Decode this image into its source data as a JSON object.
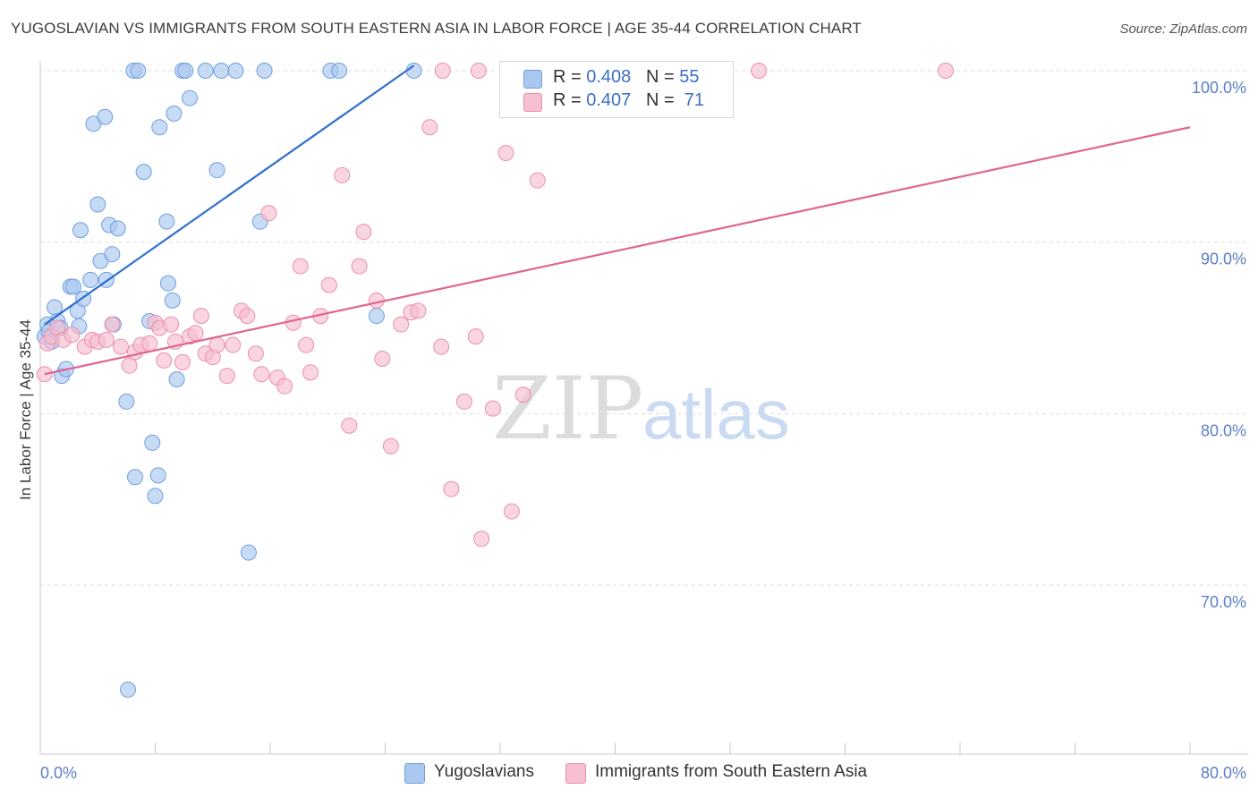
{
  "header": {
    "title": "YUGOSLAVIAN VS IMMIGRANTS FROM SOUTH EASTERN ASIA IN LABOR FORCE | AGE 35-44 CORRELATION CHART",
    "source": "Source: ZipAtlas.com"
  },
  "watermark": {
    "zip": "ZIP",
    "atlas": "atlas"
  },
  "legend": {
    "r_label": "R =",
    "n_label": "N =",
    "rows": [
      {
        "r_value": "0.408",
        "n_value": "55"
      },
      {
        "r_value": "0.407",
        "n_value": "71"
      }
    ]
  },
  "colors": {
    "blue_fill": "#aac8ef",
    "blue_stroke": "#6e9fe0",
    "blue_line": "#2f6fcf",
    "pink_fill": "#f6bfd0",
    "pink_stroke": "#ec8fae",
    "pink_line": "#e06592",
    "grid": "#dcdcdc",
    "tick_text": "#5b7fc4"
  },
  "chart_data": {
    "type": "scatter",
    "title": "YUGOSLAVIAN VS IMMIGRANTS FROM SOUTH EASTERN ASIA IN LABOR FORCE | AGE 35-44 CORRELATION CHART",
    "xlabel": "",
    "ylabel": "In Labor Force | Age 35-44",
    "xlim": [
      0,
      80
    ],
    "ylim": [
      61,
      101
    ],
    "x_tick_labels": [
      "0.0%",
      "80.0%"
    ],
    "y_ticks": [
      70,
      80,
      90,
      100
    ],
    "y_tick_labels": [
      "70.0%",
      "80.0%",
      "90.0%",
      "100.0%"
    ],
    "grid": true,
    "series": [
      {
        "name": "Yugoslavians",
        "r": 0.408,
        "n": 55,
        "trend": {
          "x": [
            0.3,
            26.0
          ],
          "y": [
            85.2,
            100.3
          ]
        },
        "points": [
          [
            0.3,
            84.5
          ],
          [
            0.5,
            85.2
          ],
          [
            0.6,
            84.8
          ],
          [
            0.8,
            84.2
          ],
          [
            1.0,
            86.2
          ],
          [
            1.2,
            85.4
          ],
          [
            1.4,
            85.0
          ],
          [
            1.5,
            82.2
          ],
          [
            1.8,
            82.6
          ],
          [
            2.1,
            87.4
          ],
          [
            2.3,
            87.4
          ],
          [
            2.6,
            86.0
          ],
          [
            2.7,
            85.1
          ],
          [
            2.8,
            90.7
          ],
          [
            3.0,
            86.7
          ],
          [
            3.5,
            87.8
          ],
          [
            3.7,
            96.9
          ],
          [
            4.0,
            92.2
          ],
          [
            4.2,
            88.9
          ],
          [
            4.5,
            97.3
          ],
          [
            4.6,
            87.8
          ],
          [
            4.8,
            91.0
          ],
          [
            5.0,
            89.3
          ],
          [
            5.1,
            85.2
          ],
          [
            5.4,
            90.8
          ],
          [
            6.0,
            80.7
          ],
          [
            6.5,
            100.0
          ],
          [
            6.6,
            76.3
          ],
          [
            6.8,
            100.0
          ],
          [
            7.2,
            94.1
          ],
          [
            7.6,
            85.4
          ],
          [
            7.8,
            78.3
          ],
          [
            8.0,
            75.2
          ],
          [
            8.2,
            76.4
          ],
          [
            8.3,
            96.7
          ],
          [
            8.8,
            91.2
          ],
          [
            8.9,
            87.6
          ],
          [
            9.2,
            86.6
          ],
          [
            9.3,
            97.5
          ],
          [
            9.5,
            82.0
          ],
          [
            9.9,
            100.0
          ],
          [
            10.1,
            100.0
          ],
          [
            10.4,
            98.4
          ],
          [
            11.5,
            100.0
          ],
          [
            12.3,
            94.2
          ],
          [
            12.6,
            100.0
          ],
          [
            13.6,
            100.0
          ],
          [
            14.5,
            71.9
          ],
          [
            15.3,
            91.2
          ],
          [
            15.6,
            100.0
          ],
          [
            20.2,
            100.0
          ],
          [
            20.8,
            100.0
          ],
          [
            23.4,
            85.7
          ],
          [
            26.0,
            100.0
          ],
          [
            6.1,
            63.9
          ]
        ]
      },
      {
        "name": "Immigrants from South Eastern Asia",
        "r": 0.407,
        "n": 71,
        "trend": {
          "x": [
            0.3,
            80.0
          ],
          "y": [
            82.3,
            96.7
          ]
        },
        "points": [
          [
            0.3,
            82.3
          ],
          [
            0.5,
            84.1
          ],
          [
            0.8,
            84.5
          ],
          [
            1.2,
            85.0
          ],
          [
            1.6,
            84.3
          ],
          [
            2.2,
            84.6
          ],
          [
            3.1,
            83.9
          ],
          [
            3.6,
            84.3
          ],
          [
            4.0,
            84.2
          ],
          [
            4.6,
            84.3
          ],
          [
            5.0,
            85.2
          ],
          [
            5.6,
            83.9
          ],
          [
            6.2,
            82.8
          ],
          [
            6.6,
            83.6
          ],
          [
            7.0,
            84.0
          ],
          [
            7.6,
            84.1
          ],
          [
            8.0,
            85.3
          ],
          [
            8.3,
            85.0
          ],
          [
            8.6,
            83.1
          ],
          [
            9.1,
            85.2
          ],
          [
            9.4,
            84.2
          ],
          [
            9.9,
            83.0
          ],
          [
            10.4,
            84.5
          ],
          [
            10.8,
            84.7
          ],
          [
            11.2,
            85.7
          ],
          [
            11.5,
            83.5
          ],
          [
            12.0,
            83.3
          ],
          [
            12.3,
            84.0
          ],
          [
            13.0,
            82.2
          ],
          [
            13.4,
            84.0
          ],
          [
            14.0,
            86.0
          ],
          [
            14.4,
            85.7
          ],
          [
            15.0,
            83.5
          ],
          [
            15.4,
            82.3
          ],
          [
            15.9,
            91.7
          ],
          [
            16.5,
            82.1
          ],
          [
            17.0,
            81.6
          ],
          [
            17.6,
            85.3
          ],
          [
            18.1,
            88.6
          ],
          [
            18.5,
            84.0
          ],
          [
            18.8,
            82.4
          ],
          [
            19.5,
            85.7
          ],
          [
            20.1,
            87.5
          ],
          [
            21.0,
            93.9
          ],
          [
            21.5,
            79.3
          ],
          [
            22.2,
            88.6
          ],
          [
            22.5,
            90.6
          ],
          [
            23.4,
            86.6
          ],
          [
            23.8,
            83.2
          ],
          [
            24.4,
            78.1
          ],
          [
            25.1,
            85.2
          ],
          [
            25.8,
            85.9
          ],
          [
            26.3,
            86.0
          ],
          [
            27.1,
            96.7
          ],
          [
            27.9,
            83.9
          ],
          [
            28.6,
            75.6
          ],
          [
            29.5,
            80.7
          ],
          [
            30.3,
            84.5
          ],
          [
            30.7,
            72.7
          ],
          [
            31.5,
            80.3
          ],
          [
            32.4,
            95.2
          ],
          [
            32.8,
            74.3
          ],
          [
            33.6,
            81.1
          ],
          [
            34.6,
            93.6
          ],
          [
            28.0,
            100.0
          ],
          [
            30.5,
            100.0
          ],
          [
            42.0,
            100.0
          ],
          [
            50.0,
            100.0
          ],
          [
            63.0,
            100.0
          ],
          [
            38.0,
            100.0
          ],
          [
            45.0,
            100.0
          ]
        ]
      }
    ]
  }
}
